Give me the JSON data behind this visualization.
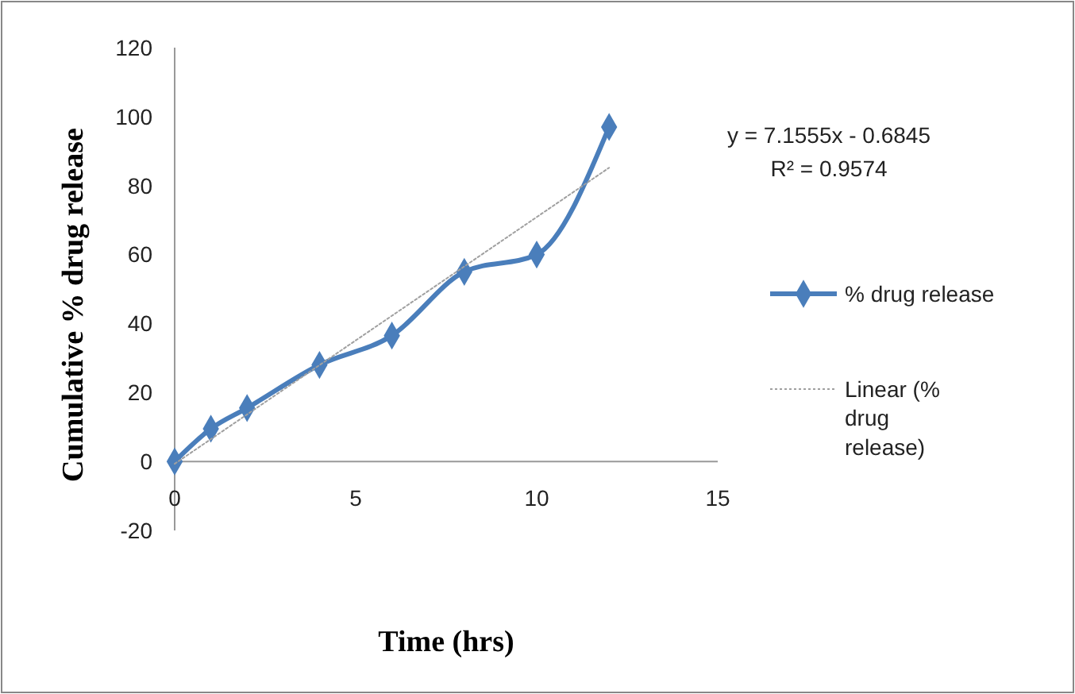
{
  "chart_data": {
    "type": "line",
    "xlabel": "Time (hrs)",
    "ylabel": "Cumulative % drug release",
    "xlim": [
      0,
      15
    ],
    "xticks": [
      0,
      5,
      10,
      15
    ],
    "ylim": [
      -20,
      120
    ],
    "yticks": [
      -20,
      0,
      20,
      40,
      60,
      80,
      100,
      120
    ],
    "grid": false,
    "legend": "right",
    "marker": "diamond",
    "annotations": [
      "y = 7.1555x - 0.6845",
      "R² = 0.9574"
    ],
    "series": [
      {
        "name": "% drug release",
        "color": "#4a7ebb",
        "x": [
          0,
          1,
          2,
          4,
          6,
          8,
          10,
          12
        ],
        "values": [
          0,
          9.5,
          15.5,
          28,
          36.5,
          55,
          60,
          97
        ],
        "line_style": "solid"
      },
      {
        "name": "Linear (% drug release)",
        "color": "#a0a0a0",
        "x": [
          0,
          12
        ],
        "values": [
          -0.6845,
          85.18
        ],
        "line_style": "dotted",
        "marker": "none"
      }
    ]
  }
}
